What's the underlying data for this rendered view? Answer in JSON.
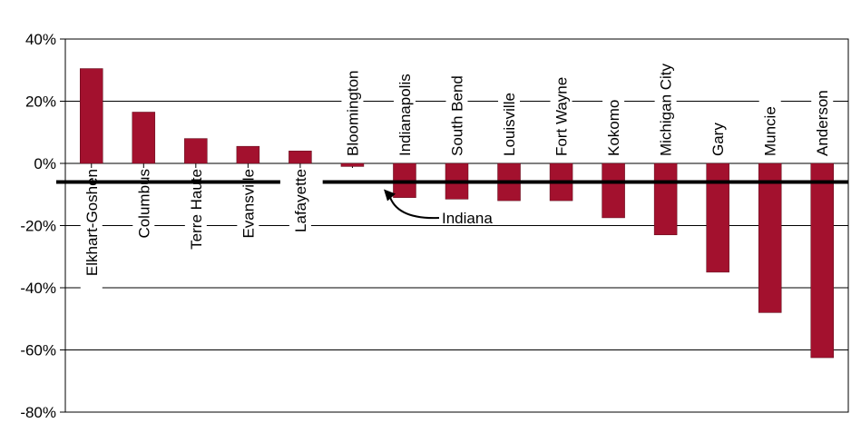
{
  "chart_data": {
    "type": "bar",
    "categories": [
      "Elkhart-Goshen",
      "Columbus",
      "Terre Haute",
      "Evansville",
      "Lafayette",
      "Bloomington",
      "Indianapolis",
      "South Bend",
      "Louisville",
      "Fort Wayne",
      "Kokomo",
      "Michigan City",
      "Gary",
      "Muncie",
      "Anderson"
    ],
    "values": [
      30.5,
      16.5,
      8,
      5.5,
      4,
      -1,
      -11,
      -11.5,
      -12,
      -12,
      -17.5,
      -23,
      -35,
      -48,
      -62.5
    ],
    "ylim": [
      -80,
      40
    ],
    "yticks": [
      "40%",
      "20%",
      "0%",
      "-20%",
      "-40%",
      "-60%",
      "-80%"
    ],
    "ytick_values": [
      40,
      20,
      0,
      -20,
      -40,
      -60,
      -80
    ],
    "reference": {
      "label": "Indiana",
      "value": -6
    },
    "grid": true,
    "bar_color": "#a3112e"
  }
}
